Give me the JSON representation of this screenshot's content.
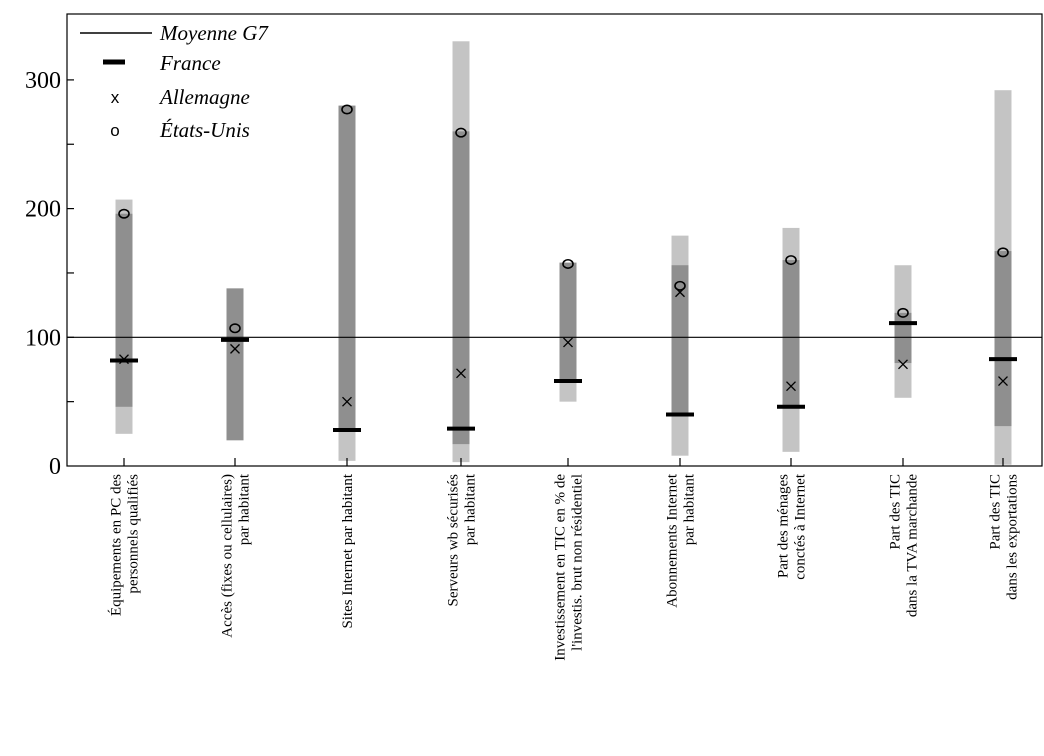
{
  "chart_data": {
    "type": "range",
    "title": "",
    "xlabel": "",
    "ylabel": "",
    "ylim": [
      0,
      345
    ],
    "yticks": [
      0,
      100,
      200,
      300
    ],
    "reference_line": {
      "name": "Moyenne G7",
      "value": 100
    },
    "legend": {
      "placement": "top-left",
      "items": [
        {
          "label": "Moyenne G7",
          "marker": "line"
        },
        {
          "label": "France",
          "marker": "bar"
        },
        {
          "label": "Allemagne",
          "marker": "x",
          "symbol": "x"
        },
        {
          "label": "États-Unis",
          "marker": "o",
          "symbol": "o"
        }
      ]
    },
    "categories": [
      {
        "label_lines": [
          "Équipements en PC des",
          "personnels  qualifiés"
        ],
        "full_min": 25,
        "full_max": 207,
        "core_min": 46,
        "core_max": 196,
        "France": 82,
        "Allemagne": 83,
        "Etats_Unis": 196
      },
      {
        "label_lines": [
          "Accès (fixes ou cellulaires)",
          "par habitant"
        ],
        "full_min": 20,
        "full_max": 138,
        "core_min": 20,
        "core_max": 138,
        "France": 98,
        "Allemagne": 91,
        "Etats_Unis": 107
      },
      {
        "label_lines": [
          "Sites Internet par habitant"
        ],
        "full_min": 4,
        "full_max": 280,
        "core_min": 28,
        "core_max": 280,
        "France": 28,
        "Allemagne": 50,
        "Etats_Unis": 277
      },
      {
        "label_lines": [
          "Serveurs  wb sécurisés",
          "par habitant"
        ],
        "full_min": 3,
        "full_max": 330,
        "core_min": 17,
        "core_max": 260,
        "France": 29,
        "Allemagne": 72,
        "Etats_Unis": 259
      },
      {
        "label_lines": [
          "Investissement en TIC en % de",
          "l'investis.  brut non résidentiel"
        ],
        "full_min": 50,
        "full_max": 158,
        "core_min": 66,
        "core_max": 158,
        "France": 66,
        "Allemagne": 96,
        "Etats_Unis": 157
      },
      {
        "label_lines": [
          "Abonnements Internet",
          "par habitant"
        ],
        "full_min": 8,
        "full_max": 179,
        "core_min": 40,
        "core_max": 156,
        "France": 40,
        "Allemagne": 135,
        "Etats_Unis": 140
      },
      {
        "label_lines": [
          "Part des ménages",
          "conctés à Internet"
        ],
        "full_min": 11,
        "full_max": 185,
        "core_min": 46,
        "core_max": 160,
        "France": 46,
        "Allemagne": 62,
        "Etats_Unis": 160
      },
      {
        "label_lines": [
          "Part des TIC",
          "dans la TVA marchande"
        ],
        "full_min": 53,
        "full_max": 156,
        "core_min": 80,
        "core_max": 119,
        "France": 111,
        "Allemagne": 79,
        "Etats_Unis": 119
      },
      {
        "label_lines": [
          "Part des TIC",
          "dans les exportations"
        ],
        "full_min": 1,
        "full_max": 292,
        "core_min": 31,
        "core_max": 167,
        "France": 83,
        "Allemagne": 66,
        "Etats_Unis": 166
      }
    ],
    "colors": {
      "full_range": "#c4c4c4",
      "core_range": "#8f8f8f",
      "reference_line": "#000000",
      "france": "#000000",
      "markers": "#000000"
    }
  }
}
